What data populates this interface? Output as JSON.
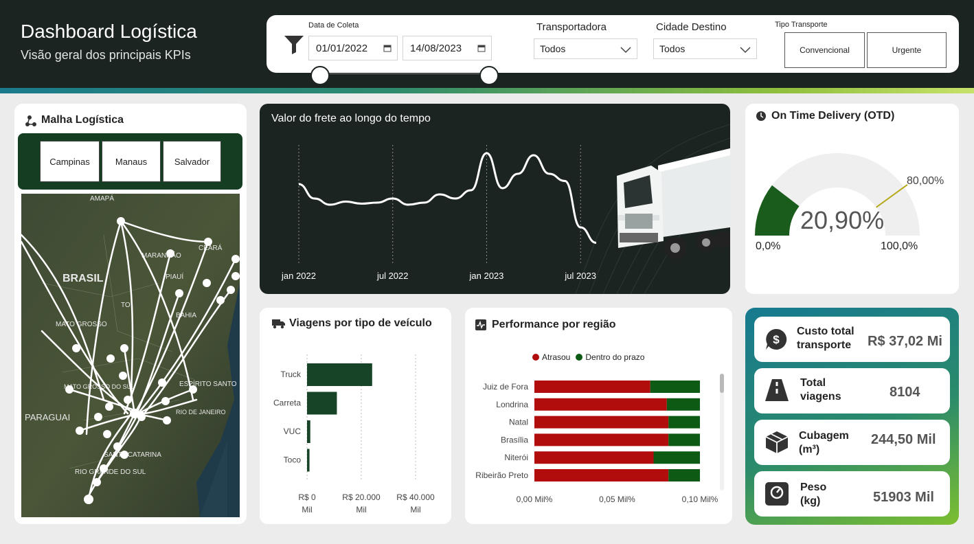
{
  "header": {
    "title": "Dashboard Logística",
    "subtitle": "Visão geral dos principais KPIs"
  },
  "filters": {
    "date_label": "Data de Coleta",
    "date_start": "01/01/2022",
    "date_end": "14/08/2023",
    "slider_start_fraction": 0.0,
    "slider_end_fraction": 1.0,
    "transportadora_label": "Transportadora",
    "transportadora_value": "Todos",
    "cidade_label": "Cidade Destino",
    "cidade_value": "Todos",
    "tipo_label": "Tipo Transporte",
    "tipo_options": [
      "Convencional",
      "Urgente"
    ]
  },
  "malha": {
    "title": "Malha Logística",
    "cities": [
      "Campinas",
      "Manaus",
      "Salvador"
    ],
    "map_labels": [
      "AMAPÁ",
      "BRASIL",
      "MARANHÃO",
      "CEARÁ",
      "PIAUÍ",
      "TO",
      "BAHIA",
      "MATO GROSSO",
      "MATO GROSSO DO SUL",
      "ESPÍRITO SANTO",
      "RIO DE JANEIRO",
      "PARAGUAI",
      "SANTA CATARINA",
      "RIO GRANDE DO SUL"
    ]
  },
  "frete": {
    "title": "Valor do frete ao longo do tempo"
  },
  "otd": {
    "title": "On Time Delivery (OTD)",
    "value_label": "20,90%",
    "value": 20.9,
    "target_label": "80,00%",
    "target": 80,
    "min_label": "0,0%",
    "max_label": "100,0%",
    "colors": {
      "fill": "#1a5c1c",
      "track": "#efefef",
      "target": "#b5a91a"
    }
  },
  "viagens": {
    "title": "Viagens por tipo de veículo"
  },
  "perf": {
    "title": "Performance por região",
    "legend": [
      "Atrasou",
      "Dentro do prazo"
    ]
  },
  "kpis": [
    {
      "label_line1": "Custo total",
      "label_line2": "transporte",
      "value": "R$ 37,02 Mi",
      "icon": "dollar-icon"
    },
    {
      "label_line1": "Total",
      "label_line2": "viagens",
      "value": "8104",
      "icon": "road-icon"
    },
    {
      "label_line1": "Cubagem",
      "label_line2": "(m³)",
      "value": "244,50 Mil",
      "icon": "box-icon"
    },
    {
      "label_line1": "Peso",
      "label_line2": "(kg)",
      "value": "51903 Mil",
      "icon": "scale-icon"
    }
  ],
  "chart_data": [
    {
      "type": "line",
      "title": "Valor do frete ao longo do tempo",
      "x_tick_labels": [
        "jan 2022",
        "jul 2022",
        "jan 2023",
        "jul 2023"
      ],
      "x": [
        "2022-01",
        "2022-02",
        "2022-03",
        "2022-04",
        "2022-05",
        "2022-06",
        "2022-07",
        "2022-08",
        "2022-09",
        "2022-10",
        "2022-11",
        "2022-12",
        "2023-01",
        "2023-02",
        "2023-03",
        "2023-04",
        "2023-05",
        "2023-06",
        "2023-07",
        "2023-08"
      ],
      "values": [
        62,
        48,
        42,
        45,
        43,
        44,
        48,
        42,
        44,
        52,
        48,
        56,
        92,
        58,
        72,
        90,
        72,
        65,
        20,
        5
      ],
      "ylim": [
        0,
        100
      ],
      "color": "#ffffff"
    },
    {
      "type": "bar",
      "orientation": "horizontal",
      "title": "Viagens por tipo de veículo",
      "categories": [
        "Truck",
        "Carreta",
        "VUC",
        "Toco"
      ],
      "values": [
        24000,
        11000,
        1200,
        900
      ],
      "x_tick_labels": [
        "R$ 0 Mil",
        "R$ 20.000 Mil",
        "R$ 40.000 Mil"
      ],
      "xlim": [
        0,
        40000
      ],
      "color": "#174326"
    },
    {
      "type": "bar",
      "orientation": "horizontal",
      "stacked": true,
      "title": "Performance por região",
      "categories": [
        "Juiz de Fora",
        "Londrina",
        "Natal",
        "Brasília",
        "Niterói",
        "Ribeirão Preto"
      ],
      "series": [
        {
          "name": "Atrasou",
          "values": [
            0.07,
            0.08,
            0.081,
            0.081,
            0.072,
            0.081
          ],
          "color": "#b10d0d"
        },
        {
          "name": "Dentro do prazo",
          "values": [
            0.03,
            0.02,
            0.019,
            0.019,
            0.028,
            0.019
          ],
          "color": "#0c5a14"
        }
      ],
      "x_tick_labels": [
        "0,00 Mil%",
        "0,05 Mil%",
        "0,10 Mil%"
      ],
      "xlim": [
        0,
        0.1
      ]
    }
  ]
}
